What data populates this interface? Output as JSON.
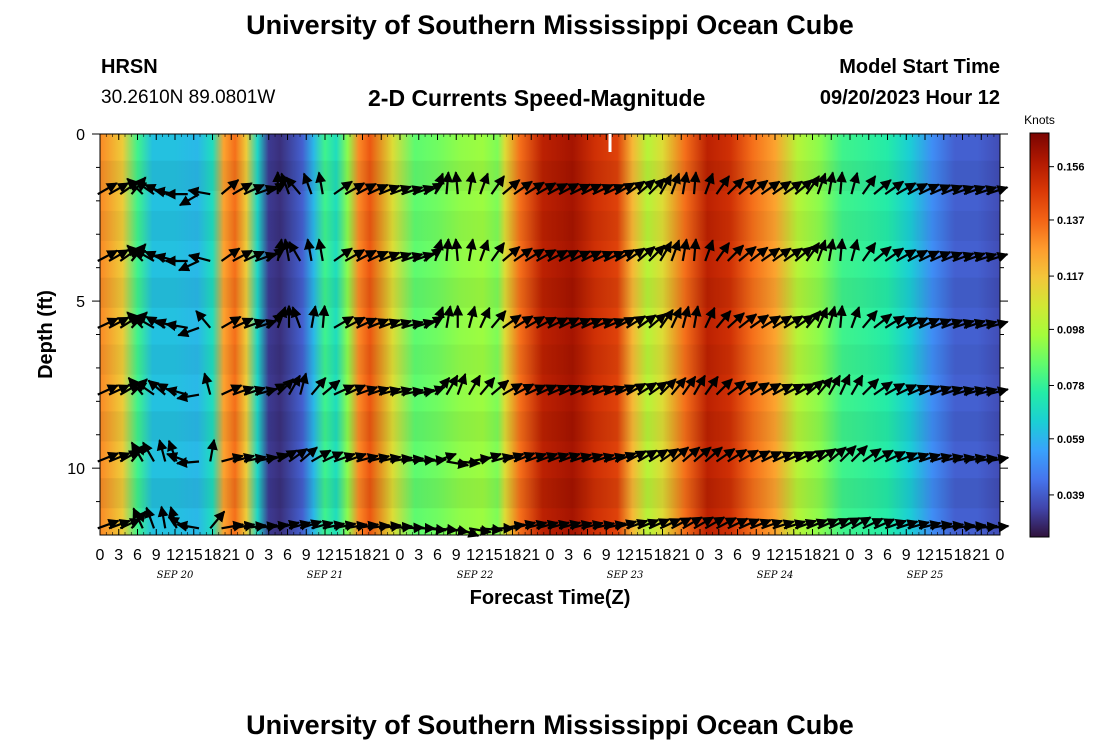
{
  "header": {
    "title": "University of Southern Mississippi Ocean Cube",
    "station": "HRSN",
    "coords": "30.2610N  89.0801W",
    "subtitle": "2-D Currents Speed-Magnitude",
    "model_label": "Model Start Time",
    "model_time": "09/20/2023 Hour 12"
  },
  "footer": {
    "title": "University of Southern Mississippi Ocean Cube"
  },
  "colors": {
    "colormap": [
      "#30123b",
      "#4145ab",
      "#4675ed",
      "#39a2fc",
      "#1bcfd4",
      "#24eca6",
      "#61fc6c",
      "#a4fc3b",
      "#d1e834",
      "#f3c63a",
      "#fe9b2d",
      "#f36315",
      "#d93806",
      "#b11901",
      "#7a0402"
    ]
  },
  "chart_data": {
    "type": "heatmap",
    "xlabel": "Forecast Time(Z)",
    "ylabel": "Depth (ft)",
    "unit_label": "Knots",
    "x_tick_labels": [
      "0",
      "3",
      "6",
      "9",
      "12",
      "15",
      "18",
      "21",
      "0",
      "3",
      "6",
      "9",
      "12",
      "15",
      "18",
      "21",
      "0",
      "3",
      "6",
      "9",
      "12",
      "15",
      "18",
      "21",
      "0",
      "3",
      "6",
      "9",
      "12",
      "15",
      "18",
      "21",
      "0",
      "3",
      "6",
      "9",
      "12",
      "15",
      "18",
      "21",
      "0",
      "3",
      "6",
      "9",
      "12",
      "15",
      "18",
      "21",
      "0"
    ],
    "date_labels": [
      "SEP 20",
      "SEP 21",
      "SEP 22",
      "SEP 23",
      "SEP 24",
      "SEP 25"
    ],
    "y_tick_labels": [
      "0",
      "5",
      "10"
    ],
    "ylim": [
      0,
      12
    ],
    "y_reversed": true,
    "colorbar_ticks": [
      "0.156",
      "0.137",
      "0.117",
      "0.098",
      "0.078",
      "0.059",
      "0.039"
    ],
    "colorbar_range": [
      0.024,
      0.168
    ],
    "current_time_marker_hour": 136,
    "speed_by_hour": [
      [
        0,
        0.13
      ],
      [
        6,
        0.115
      ],
      [
        10,
        0.08
      ],
      [
        14,
        0.062
      ],
      [
        20,
        0.062
      ],
      [
        26,
        0.06
      ],
      [
        30,
        0.07
      ],
      [
        33,
        0.125
      ],
      [
        36,
        0.135
      ],
      [
        39,
        0.115
      ],
      [
        42,
        0.068
      ],
      [
        45,
        0.032
      ],
      [
        48,
        0.03
      ],
      [
        54,
        0.04
      ],
      [
        57,
        0.06
      ],
      [
        60,
        0.08
      ],
      [
        63,
        0.07
      ],
      [
        66,
        0.092
      ],
      [
        69,
        0.13
      ],
      [
        72,
        0.14
      ],
      [
        78,
        0.11
      ],
      [
        84,
        0.085
      ],
      [
        90,
        0.088
      ],
      [
        96,
        0.093
      ],
      [
        102,
        0.095
      ],
      [
        106,
        0.09
      ],
      [
        108,
        0.11
      ],
      [
        112,
        0.135
      ],
      [
        118,
        0.155
      ],
      [
        126,
        0.16
      ],
      [
        132,
        0.15
      ],
      [
        138,
        0.145
      ],
      [
        142,
        0.12
      ],
      [
        146,
        0.1
      ],
      [
        150,
        0.11
      ],
      [
        156,
        0.135
      ],
      [
        162,
        0.155
      ],
      [
        168,
        0.15
      ],
      [
        174,
        0.135
      ],
      [
        180,
        0.125
      ],
      [
        186,
        0.1
      ],
      [
        192,
        0.092
      ],
      [
        198,
        0.08
      ],
      [
        204,
        0.078
      ],
      [
        210,
        0.075
      ],
      [
        216,
        0.065
      ],
      [
        222,
        0.05
      ],
      [
        228,
        0.04
      ],
      [
        234,
        0.04
      ],
      [
        240,
        0.036
      ]
    ],
    "depth_rows_ft": [
      1.8,
      3.8,
      5.8,
      7.8,
      9.8,
      11.8
    ],
    "vectors": [
      {
        "hour": 1,
        "dir": [
          60,
          62,
          65,
          65,
          68,
          70
        ]
      },
      {
        "hour": 4,
        "dir": [
          60,
          60,
          62,
          65,
          68,
          70
        ]
      },
      {
        "hour": 7,
        "dir": [
          55,
          55,
          58,
          60,
          60,
          65
        ]
      },
      {
        "hour": 10,
        "dir": [
          40,
          40,
          45,
          45,
          40,
          40
        ]
      },
      {
        "hour": 13,
        "dir": [
          -45,
          -45,
          -45,
          -40,
          -30,
          -25
        ]
      },
      {
        "hour": 16,
        "dir": [
          -55,
          -60,
          -60,
          -55,
          -30,
          -20
        ]
      },
      {
        "hour": 19,
        "dir": [
          -65,
          -65,
          -60,
          -50,
          -15,
          -10
        ]
      },
      {
        "hour": 22,
        "dir": [
          -80,
          -75,
          -70,
          -60,
          -20,
          -15
        ]
      },
      {
        "hour": 25,
        "dir": [
          -90,
          -90,
          -80,
          -75,
          -70,
          -60
        ]
      },
      {
        "hour": 28,
        "dir": [
          -120,
          -115,
          -110,
          -100,
          -95,
          -80
        ]
      },
      {
        "hour": 31,
        "dir": [
          -80,
          -75,
          -40,
          -15,
          10,
          40
        ]
      },
      {
        "hour": 34,
        "dir": [
          50,
          55,
          60,
          65,
          75,
          80
        ]
      },
      {
        "hour": 37,
        "dir": [
          60,
          62,
          65,
          70,
          75,
          80
        ]
      },
      {
        "hour": 40,
        "dir": [
          65,
          65,
          70,
          72,
          78,
          82
        ]
      },
      {
        "hour": 43,
        "dir": [
          70,
          70,
          72,
          75,
          78,
          82
        ]
      },
      {
        "hour": 46,
        "dir": [
          60,
          55,
          50,
          60,
          70,
          80
        ]
      },
      {
        "hour": 49,
        "dir": [
          0,
          10,
          20,
          45,
          60,
          75
        ]
      },
      {
        "hour": 52,
        "dir": [
          -20,
          -10,
          0,
          30,
          55,
          75
        ]
      },
      {
        "hour": 55,
        "dir": [
          -40,
          -30,
          -20,
          15,
          50,
          72
        ]
      },
      {
        "hour": 58,
        "dir": [
          -20,
          -10,
          10,
          40,
          60,
          75
        ]
      },
      {
        "hour": 61,
        "dir": [
          -10,
          -10,
          5,
          50,
          65,
          78
        ]
      },
      {
        "hour": 64,
        "dir": [
          55,
          55,
          60,
          65,
          70,
          78
        ]
      },
      {
        "hour": 67,
        "dir": [
          60,
          60,
          62,
          65,
          70,
          80
        ]
      },
      {
        "hour": 70,
        "dir": [
          62,
          62,
          65,
          70,
          75,
          80
        ]
      },
      {
        "hour": 73,
        "dir": [
          65,
          65,
          68,
          72,
          76,
          82
        ]
      },
      {
        "hour": 76,
        "dir": [
          68,
          68,
          70,
          75,
          78,
          82
        ]
      },
      {
        "hour": 79,
        "dir": [
          70,
          70,
          72,
          75,
          80,
          85
        ]
      },
      {
        "hour": 82,
        "dir": [
          72,
          72,
          75,
          78,
          82,
          88
        ]
      },
      {
        "hour": 85,
        "dir": [
          70,
          70,
          72,
          78,
          85,
          90
        ]
      },
      {
        "hour": 88,
        "dir": [
          60,
          55,
          60,
          70,
          85,
          95
        ]
      },
      {
        "hour": 91,
        "dir": [
          20,
          15,
          20,
          40,
          70,
          95
        ]
      },
      {
        "hour": 94,
        "dir": [
          5,
          5,
          10,
          30,
          100,
          100
        ]
      },
      {
        "hour": 97,
        "dir": [
          -5,
          -5,
          0,
          20,
          95,
          110
        ]
      },
      {
        "hour": 100,
        "dir": [
          10,
          10,
          15,
          30,
          80,
          100
        ]
      },
      {
        "hour": 103,
        "dir": [
          20,
          20,
          25,
          40,
          70,
          95
        ]
      },
      {
        "hour": 106,
        "dir": [
          35,
          35,
          40,
          50,
          75,
          90
        ]
      },
      {
        "hour": 109,
        "dir": [
          50,
          50,
          55,
          60,
          70,
          80
        ]
      },
      {
        "hour": 112,
        "dir": [
          55,
          55,
          58,
          62,
          68,
          75
        ]
      },
      {
        "hour": 115,
        "dir": [
          58,
          58,
          60,
          65,
          70,
          75
        ]
      },
      {
        "hour": 118,
        "dir": [
          60,
          60,
          62,
          65,
          70,
          75
        ]
      },
      {
        "hour": 121,
        "dir": [
          62,
          62,
          64,
          66,
          70,
          75
        ]
      },
      {
        "hour": 124,
        "dir": [
          62,
          62,
          64,
          66,
          70,
          75
        ]
      },
      {
        "hour": 127,
        "dir": [
          64,
          64,
          66,
          68,
          72,
          76
        ]
      },
      {
        "hour": 130,
        "dir": [
          64,
          64,
          66,
          68,
          72,
          76
        ]
      },
      {
        "hour": 133,
        "dir": [
          65,
          65,
          67,
          69,
          73,
          77
        ]
      },
      {
        "hour": 136,
        "dir": [
          65,
          65,
          67,
          69,
          73,
          77
        ]
      },
      {
        "hour": 139,
        "dir": [
          60,
          60,
          62,
          65,
          68,
          72
        ]
      },
      {
        "hour": 142,
        "dir": [
          55,
          55,
          58,
          60,
          62,
          70
        ]
      },
      {
        "hour": 145,
        "dir": [
          50,
          50,
          55,
          58,
          60,
          68
        ]
      },
      {
        "hour": 148,
        "dir": [
          45,
          45,
          50,
          55,
          58,
          66
        ]
      },
      {
        "hour": 151,
        "dir": [
          30,
          30,
          35,
          45,
          55,
          65
        ]
      },
      {
        "hour": 154,
        "dir": [
          20,
          20,
          25,
          40,
          50,
          62
        ]
      },
      {
        "hour": 157,
        "dir": [
          10,
          10,
          15,
          35,
          50,
          60
        ]
      },
      {
        "hour": 160,
        "dir": [
          5,
          5,
          10,
          30,
          50,
          60
        ]
      },
      {
        "hour": 163,
        "dir": [
          20,
          20,
          25,
          35,
          50,
          60
        ]
      },
      {
        "hour": 166,
        "dir": [
          35,
          35,
          40,
          45,
          55,
          62
        ]
      },
      {
        "hour": 169,
        "dir": [
          45,
          45,
          48,
          52,
          58,
          64
        ]
      },
      {
        "hour": 172,
        "dir": [
          50,
          50,
          52,
          55,
          60,
          66
        ]
      },
      {
        "hour": 175,
        "dir": [
          52,
          52,
          55,
          58,
          62,
          68
        ]
      },
      {
        "hour": 178,
        "dir": [
          55,
          55,
          58,
          60,
          64,
          70
        ]
      },
      {
        "hour": 181,
        "dir": [
          55,
          55,
          58,
          62,
          66,
          72
        ]
      },
      {
        "hour": 184,
        "dir": [
          55,
          55,
          58,
          62,
          66,
          72
        ]
      },
      {
        "hour": 187,
        "dir": [
          50,
          50,
          55,
          60,
          64,
          70
        ]
      },
      {
        "hour": 190,
        "dir": [
          35,
          35,
          40,
          50,
          60,
          68
        ]
      },
      {
        "hour": 193,
        "dir": [
          20,
          20,
          25,
          40,
          55,
          66
        ]
      },
      {
        "hour": 196,
        "dir": [
          10,
          10,
          15,
          30,
          50,
          64
        ]
      },
      {
        "hour": 199,
        "dir": [
          5,
          5,
          5,
          25,
          45,
          62
        ]
      },
      {
        "hour": 202,
        "dir": [
          15,
          15,
          20,
          30,
          45,
          60
        ]
      },
      {
        "hour": 205,
        "dir": [
          35,
          35,
          40,
          45,
          55,
          64
        ]
      },
      {
        "hour": 208,
        "dir": [
          50,
          50,
          52,
          55,
          60,
          66
        ]
      },
      {
        "hour": 211,
        "dir": [
          55,
          55,
          58,
          60,
          64,
          70
        ]
      },
      {
        "hour": 214,
        "dir": [
          60,
          60,
          62,
          64,
          68,
          72
        ]
      },
      {
        "hour": 217,
        "dir": [
          62,
          62,
          64,
          66,
          70,
          74
        ]
      },
      {
        "hour": 220,
        "dir": [
          64,
          64,
          66,
          68,
          72,
          76
        ]
      },
      {
        "hour": 223,
        "dir": [
          66,
          66,
          68,
          70,
          74,
          78
        ]
      },
      {
        "hour": 226,
        "dir": [
          68,
          68,
          70,
          72,
          76,
          80
        ]
      },
      {
        "hour": 229,
        "dir": [
          70,
          70,
          72,
          74,
          78,
          82
        ]
      },
      {
        "hour": 232,
        "dir": [
          70,
          70,
          72,
          74,
          78,
          82
        ]
      },
      {
        "hour": 235,
        "dir": [
          72,
          72,
          74,
          76,
          80,
          84
        ]
      },
      {
        "hour": 238,
        "dir": [
          72,
          72,
          74,
          76,
          80,
          84
        ]
      }
    ]
  }
}
